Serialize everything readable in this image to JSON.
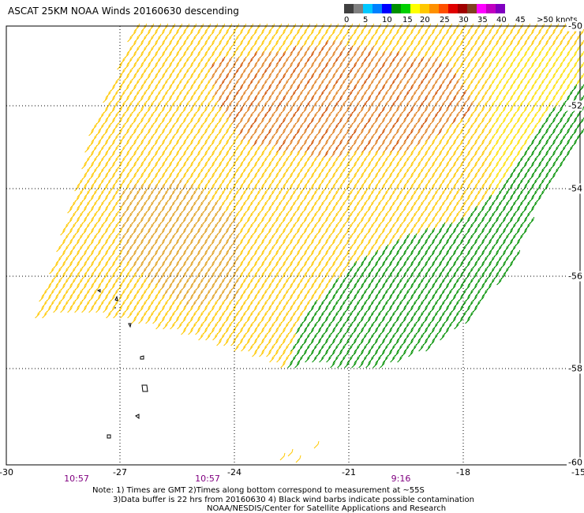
{
  "title": "ASCAT 25KM NOAA Winds 20160630 descending",
  "legend": {
    "labels": [
      "0",
      "5",
      "10",
      "15",
      "20",
      "25",
      "30",
      "35",
      "40",
      "45",
      ">50 knots"
    ],
    "colors": [
      "#404040",
      "#808080",
      "#00c8ff",
      "#0080ff",
      "#0000ff",
      "#009000",
      "#00d000",
      "#ffff00",
      "#ffc800",
      "#ff9000",
      "#ff5000",
      "#e00000",
      "#a00000",
      "#804020",
      "#ff00ff",
      "#c000c0",
      "#8000c0"
    ]
  },
  "x_ticks": [
    "-30",
    "-27",
    "-24",
    "-21",
    "-18",
    "-15"
  ],
  "y_ticks": [
    "-50",
    "-52",
    "-54",
    "-56",
    "-58",
    "-60"
  ],
  "time_labels": [
    "10:57",
    "10:57",
    "9:16"
  ],
  "notes": {
    "line1": "Note: 1) Times are GMT 2)Times along bottom correspond to measurement at ~55S",
    "line2": "3)Data buffer is 22 hrs from 20160630 4) Black wind barbs indicate possible contamination",
    "line3": "NOAA/NESDIS/Center for Satellite Applications and Research"
  }
}
